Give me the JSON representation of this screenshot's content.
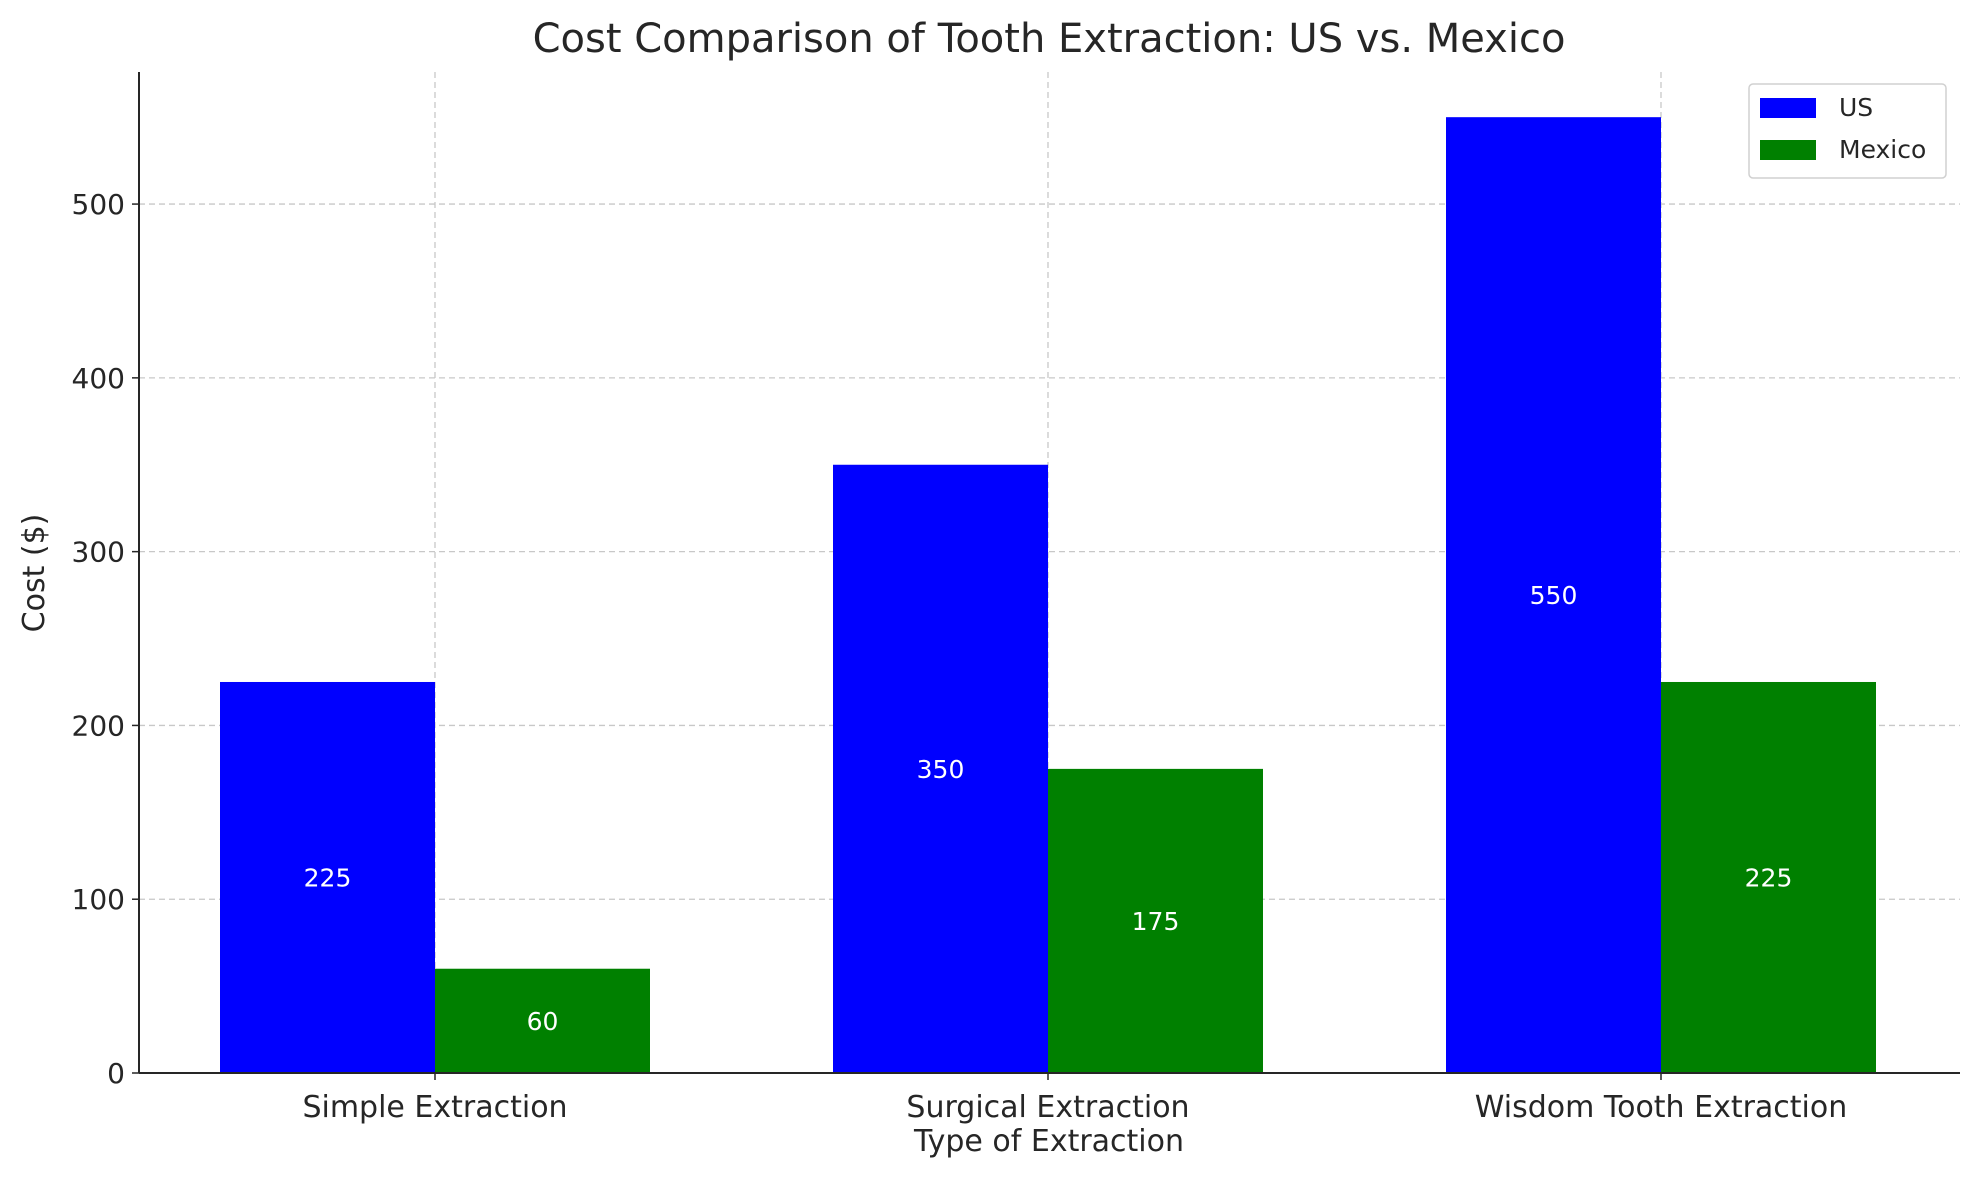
{
  "chart_data": {
    "type": "bar",
    "title": "Cost Comparison of Tooth Extraction: US vs. Mexico",
    "xlabel": "Type of Extraction",
    "ylabel": "Cost ($)",
    "categories": [
      "Simple Extraction",
      "Surgical Extraction",
      "Wisdom Tooth Extraction"
    ],
    "series": [
      {
        "name": "US",
        "values": [
          225,
          350,
          550
        ],
        "color": "#0000ff"
      },
      {
        "name": "Mexico",
        "values": [
          60,
          175,
          225
        ],
        "color": "#008000"
      }
    ],
    "ylim": [
      0,
      576
    ],
    "yticks": [
      0,
      100,
      200,
      300,
      400,
      500
    ],
    "grid": true,
    "legend": "top-right",
    "data_labels": true
  }
}
